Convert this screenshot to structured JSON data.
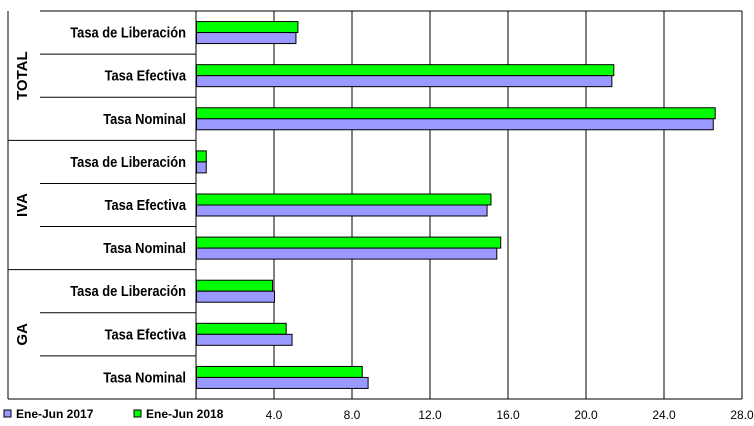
{
  "chart_data": {
    "type": "bar",
    "orientation": "horizontal",
    "groups": [
      {
        "name": "TOTAL",
        "categories": [
          "Tasa de Liberación",
          "Tasa Efectiva",
          "Tasa Nominal"
        ]
      },
      {
        "name": "IVA",
        "categories": [
          "Tasa de Liberación",
          "Tasa Efectiva",
          "Tasa Nominal"
        ]
      },
      {
        "name": "GA",
        "categories": [
          "Tasa de Liberación",
          "Tasa Efectiva",
          "Tasa Nominal"
        ]
      }
    ],
    "series": [
      {
        "name": "Ene-Jun 2018",
        "color": "#00ff00",
        "values": [
          5.2,
          21.4,
          26.6,
          0.5,
          15.1,
          15.6,
          3.9,
          4.6,
          8.5
        ]
      },
      {
        "name": "Ene-Jun 2017",
        "color": "#9999ff",
        "values": [
          5.1,
          21.3,
          26.5,
          0.5,
          14.9,
          15.4,
          4.0,
          4.9,
          8.8
        ]
      }
    ],
    "xlim": [
      0,
      28
    ],
    "xticks": [
      "4.0",
      "8.0",
      "12.0",
      "16.0",
      "20.0",
      "24.0",
      "28.0"
    ],
    "legend": [
      {
        "name": "Ene-Jun 2017",
        "color": "#9999ff"
      },
      {
        "name": "Ene-Jun 2018",
        "color": "#00ff00"
      }
    ],
    "legend_position": "bottom-left",
    "grid": true
  }
}
